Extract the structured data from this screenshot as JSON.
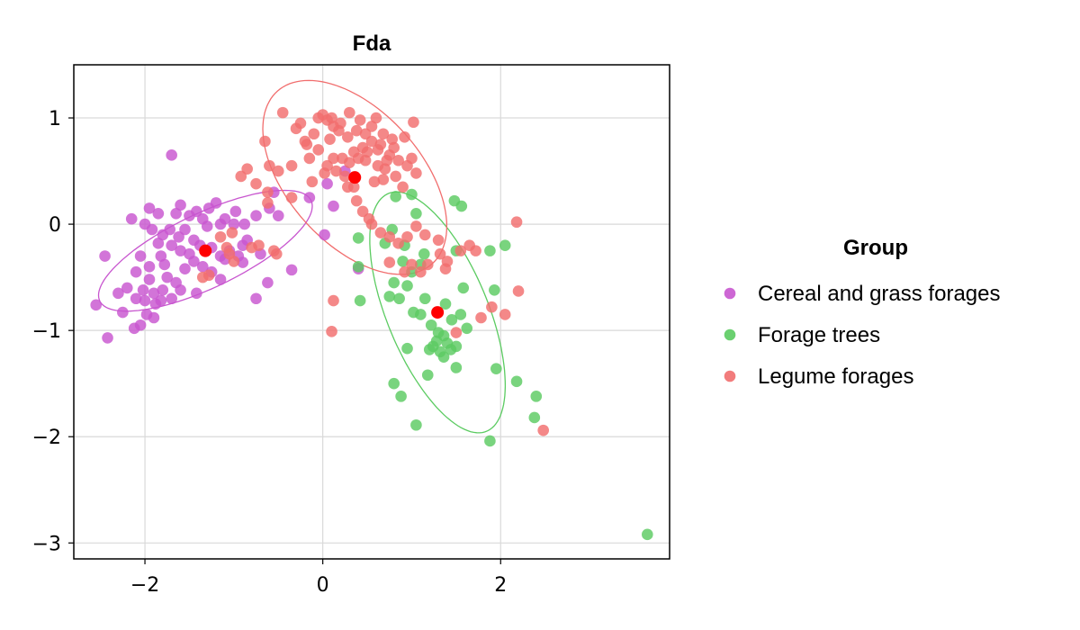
{
  "chart_data": {
    "type": "scatter",
    "title": "Fda",
    "xlabel": "",
    "ylabel": "",
    "xlim": [
      -2.8,
      3.9
    ],
    "ylim": [
      -3.15,
      1.5
    ],
    "xticks": [
      -2,
      0,
      2
    ],
    "yticks": [
      -3,
      -2,
      -1,
      0,
      1
    ],
    "xtick_labels": [
      "−2",
      "0",
      "2"
    ],
    "ytick_labels": [
      "−3",
      "−2",
      "−1",
      "0",
      "1"
    ],
    "grid": true,
    "legend": {
      "title": "Group",
      "position": "right"
    },
    "series": [
      {
        "name": "Cereal and grass forages",
        "color": "#c856cf",
        "centroid": [
          -1.32,
          -0.25
        ],
        "ellipse": {
          "center": [
            -1.32,
            -0.25
          ],
          "rx": 1.28,
          "ry": 0.36,
          "angle_deg": 21
        },
        "points": [
          [
            -1.7,
            0.65
          ],
          [
            -1.95,
            0.15
          ],
          [
            -1.85,
            0.1
          ],
          [
            -2.15,
            0.05
          ],
          [
            -2.0,
            0.0
          ],
          [
            -1.92,
            -0.05
          ],
          [
            -1.8,
            -0.1
          ],
          [
            -1.72,
            -0.05
          ],
          [
            -1.65,
            0.1
          ],
          [
            -1.6,
            0.18
          ],
          [
            -1.5,
            0.08
          ],
          [
            -1.42,
            0.12
          ],
          [
            -1.35,
            0.05
          ],
          [
            -1.28,
            0.15
          ],
          [
            -1.2,
            0.2
          ],
          [
            -1.1,
            0.05
          ],
          [
            -0.98,
            0.12
          ],
          [
            -0.88,
            0.0
          ],
          [
            -0.75,
            0.08
          ],
          [
            -0.6,
            0.15
          ],
          [
            -1.55,
            -0.05
          ],
          [
            -1.45,
            -0.15
          ],
          [
            -1.38,
            -0.2
          ],
          [
            -1.25,
            -0.22
          ],
          [
            -1.15,
            -0.3
          ],
          [
            -1.05,
            -0.25
          ],
          [
            -0.95,
            -0.3
          ],
          [
            -0.85,
            -0.15
          ],
          [
            -1.6,
            -0.25
          ],
          [
            -1.7,
            -0.2
          ],
          [
            -1.82,
            -0.3
          ],
          [
            -1.95,
            -0.4
          ],
          [
            -2.05,
            -0.3
          ],
          [
            -2.45,
            -0.3
          ],
          [
            -2.2,
            -0.6
          ],
          [
            -2.3,
            -0.65
          ],
          [
            -2.1,
            -0.7
          ],
          [
            -2.0,
            -0.72
          ],
          [
            -1.9,
            -0.65
          ],
          [
            -1.8,
            -0.62
          ],
          [
            -1.75,
            -0.5
          ],
          [
            -1.65,
            -0.55
          ],
          [
            -1.55,
            -0.42
          ],
          [
            -1.45,
            -0.35
          ],
          [
            -1.35,
            -0.4
          ],
          [
            -1.25,
            -0.45
          ],
          [
            -1.15,
            -0.52
          ],
          [
            -1.7,
            -0.7
          ],
          [
            -1.88,
            -0.75
          ],
          [
            -1.98,
            -0.85
          ],
          [
            -2.05,
            -0.95
          ],
          [
            -2.12,
            -0.98
          ],
          [
            -2.55,
            -0.76
          ],
          [
            -2.42,
            -1.07
          ],
          [
            -1.9,
            -0.88
          ],
          [
            -1.82,
            -0.72
          ],
          [
            -1.6,
            -0.62
          ],
          [
            -1.42,
            -0.65
          ],
          [
            -1.1,
            -0.33
          ],
          [
            -0.9,
            -0.2
          ],
          [
            -0.7,
            -0.28
          ],
          [
            -0.62,
            -0.55
          ],
          [
            -0.75,
            -0.7
          ],
          [
            -0.35,
            -0.43
          ],
          [
            -0.15,
            0.25
          ],
          [
            0.05,
            0.38
          ],
          [
            0.12,
            0.17
          ],
          [
            0.02,
            -0.1
          ],
          [
            -0.9,
            -0.36
          ],
          [
            -2.02,
            -0.62
          ],
          [
            -2.25,
            -0.83
          ],
          [
            -1.62,
            -0.12
          ],
          [
            -1.3,
            -0.02
          ],
          [
            -1.0,
            0.0
          ],
          [
            -1.5,
            -0.28
          ],
          [
            -1.78,
            -0.38
          ],
          [
            -1.95,
            -0.52
          ],
          [
            -2.1,
            -0.45
          ],
          [
            -0.55,
            0.3
          ],
          [
            0.25,
            0.5
          ],
          [
            -0.5,
            0.08
          ],
          [
            -1.15,
            0.0
          ],
          [
            -1.85,
            -0.18
          ],
          [
            0.4,
            -0.42
          ]
        ]
      },
      {
        "name": "Forage trees",
        "color": "#5bcb61",
        "centroid": [
          1.29,
          -0.83
        ],
        "ellipse": {
          "center": [
            1.29,
            -0.83
          ],
          "rx": 1.25,
          "ry": 0.55,
          "angle_deg": -62
        },
        "points": [
          [
            3.65,
            -2.92
          ],
          [
            1.88,
            -2.04
          ],
          [
            1.05,
            -1.89
          ],
          [
            2.38,
            -1.82
          ],
          [
            2.4,
            -1.62
          ],
          [
            2.18,
            -1.48
          ],
          [
            0.88,
            -1.62
          ],
          [
            0.8,
            -1.5
          ],
          [
            1.18,
            -1.42
          ],
          [
            1.5,
            -1.35
          ],
          [
            1.95,
            -1.36
          ],
          [
            0.95,
            -1.17
          ],
          [
            1.2,
            -1.18
          ],
          [
            1.32,
            -1.2
          ],
          [
            1.36,
            -1.25
          ],
          [
            1.28,
            -1.1
          ],
          [
            1.36,
            -1.05
          ],
          [
            1.4,
            -1.12
          ],
          [
            1.44,
            -1.18
          ],
          [
            1.24,
            -1.15
          ],
          [
            1.3,
            -1.02
          ],
          [
            1.22,
            -0.95
          ],
          [
            1.5,
            -1.15
          ],
          [
            1.62,
            -0.98
          ],
          [
            1.55,
            -0.85
          ],
          [
            1.45,
            -0.9
          ],
          [
            1.38,
            -0.75
          ],
          [
            1.1,
            -0.85
          ],
          [
            1.02,
            -0.83
          ],
          [
            1.15,
            -0.7
          ],
          [
            0.75,
            -0.68
          ],
          [
            0.86,
            -0.7
          ],
          [
            0.95,
            -0.58
          ],
          [
            0.8,
            -0.55
          ],
          [
            1.0,
            -0.45
          ],
          [
            1.1,
            -0.38
          ],
          [
            1.58,
            -0.6
          ],
          [
            1.93,
            -0.62
          ],
          [
            1.88,
            -0.25
          ],
          [
            2.05,
            -0.2
          ],
          [
            1.5,
            -0.25
          ],
          [
            0.92,
            -0.2
          ],
          [
            0.7,
            -0.18
          ],
          [
            0.78,
            -0.05
          ],
          [
            1.05,
            0.1
          ],
          [
            0.82,
            0.26
          ],
          [
            1.0,
            0.28
          ],
          [
            1.48,
            0.22
          ],
          [
            1.56,
            0.17
          ],
          [
            0.42,
            -0.72
          ],
          [
            0.4,
            -0.4
          ],
          [
            0.4,
            -0.13
          ],
          [
            0.9,
            -0.35
          ],
          [
            1.14,
            -0.28
          ]
        ]
      },
      {
        "name": "Legume forages",
        "color": "#f16e6e",
        "centroid": [
          0.36,
          0.44
        ],
        "ellipse": {
          "center": [
            0.36,
            0.44
          ],
          "rx": 1.2,
          "ry": 0.68,
          "angle_deg": -38
        },
        "points": [
          [
            -0.45,
            1.05
          ],
          [
            -0.25,
            0.95
          ],
          [
            -0.05,
            1.0
          ],
          [
            0.0,
            1.03
          ],
          [
            0.1,
            1.0
          ],
          [
            0.2,
            0.95
          ],
          [
            0.3,
            1.05
          ],
          [
            0.42,
            0.98
          ],
          [
            0.55,
            0.92
          ],
          [
            0.68,
            0.85
          ],
          [
            0.78,
            0.8
          ],
          [
            0.92,
            0.82
          ],
          [
            0.55,
            0.78
          ],
          [
            0.45,
            0.72
          ],
          [
            0.62,
            0.7
          ],
          [
            0.75,
            0.65
          ],
          [
            0.85,
            0.6
          ],
          [
            0.95,
            0.55
          ],
          [
            1.05,
            0.48
          ],
          [
            0.82,
            0.45
          ],
          [
            0.68,
            0.42
          ],
          [
            0.58,
            0.4
          ],
          [
            -0.1,
            0.85
          ],
          [
            -0.2,
            0.78
          ],
          [
            -0.15,
            0.62
          ],
          [
            -0.35,
            0.55
          ],
          [
            -0.5,
            0.5
          ],
          [
            -0.6,
            0.55
          ],
          [
            -0.65,
            0.78
          ],
          [
            -0.92,
            0.45
          ],
          [
            -0.62,
            0.3
          ],
          [
            -0.62,
            0.2
          ],
          [
            -0.35,
            0.25
          ],
          [
            -0.12,
            0.4
          ],
          [
            0.02,
            0.48
          ],
          [
            0.15,
            0.5
          ],
          [
            0.25,
            0.45
          ],
          [
            0.35,
            0.35
          ],
          [
            0.38,
            0.22
          ],
          [
            0.45,
            0.12
          ],
          [
            0.55,
            0.0
          ],
          [
            0.65,
            -0.08
          ],
          [
            0.75,
            -0.12
          ],
          [
            0.85,
            -0.18
          ],
          [
            0.95,
            -0.12
          ],
          [
            1.05,
            -0.02
          ],
          [
            1.15,
            -0.1
          ],
          [
            1.3,
            -0.15
          ],
          [
            1.32,
            -0.28
          ],
          [
            1.18,
            -0.38
          ],
          [
            1.1,
            -0.45
          ],
          [
            1.0,
            -0.38
          ],
          [
            0.92,
            -0.45
          ],
          [
            0.75,
            -0.36
          ],
          [
            1.38,
            -0.42
          ],
          [
            1.4,
            -0.35
          ],
          [
            1.55,
            -0.25
          ],
          [
            1.65,
            -0.2
          ],
          [
            1.72,
            -0.25
          ],
          [
            1.78,
            -0.88
          ],
          [
            1.9,
            -0.78
          ],
          [
            2.05,
            -0.85
          ],
          [
            2.2,
            -0.63
          ],
          [
            2.48,
            -1.94
          ],
          [
            1.5,
            -1.02
          ],
          [
            0.1,
            -1.01
          ],
          [
            0.12,
            -0.72
          ],
          [
            -1.05,
            -0.28
          ],
          [
            -1.15,
            -0.12
          ],
          [
            -1.02,
            -0.08
          ],
          [
            -1.08,
            -0.22
          ],
          [
            -0.8,
            -0.22
          ],
          [
            -0.72,
            -0.2
          ],
          [
            -0.55,
            -0.25
          ],
          [
            -0.52,
            -0.28
          ],
          [
            -1.35,
            -0.5
          ],
          [
            -1.28,
            -0.48
          ],
          [
            -1.0,
            -0.35
          ],
          [
            2.18,
            0.02
          ],
          [
            -0.05,
            0.7
          ],
          [
            0.08,
            0.8
          ],
          [
            0.18,
            0.88
          ],
          [
            0.28,
            0.82
          ],
          [
            0.38,
            0.88
          ],
          [
            0.48,
            0.85
          ],
          [
            -0.3,
            0.9
          ],
          [
            0.6,
            1.0
          ],
          [
            0.65,
            0.75
          ],
          [
            1.0,
            0.62
          ],
          [
            0.22,
            0.62
          ],
          [
            0.3,
            0.58
          ],
          [
            -0.85,
            0.52
          ],
          [
            -0.75,
            0.38
          ],
          [
            0.05,
            0.55
          ],
          [
            0.48,
            0.6
          ],
          [
            0.62,
            0.55
          ],
          [
            0.7,
            0.52
          ],
          [
            0.28,
            0.35
          ],
          [
            0.12,
            0.62
          ],
          [
            0.9,
            0.35
          ],
          [
            1.02,
            0.96
          ],
          [
            0.52,
            0.05
          ],
          [
            0.05,
            0.98
          ],
          [
            0.12,
            0.92
          ],
          [
            0.35,
            0.68
          ],
          [
            -0.18,
            0.75
          ],
          [
            0.4,
            0.62
          ],
          [
            0.5,
            0.68
          ],
          [
            0.8,
            0.72
          ],
          [
            0.72,
            0.6
          ]
        ]
      }
    ],
    "centroid_color": "#ff0000"
  }
}
